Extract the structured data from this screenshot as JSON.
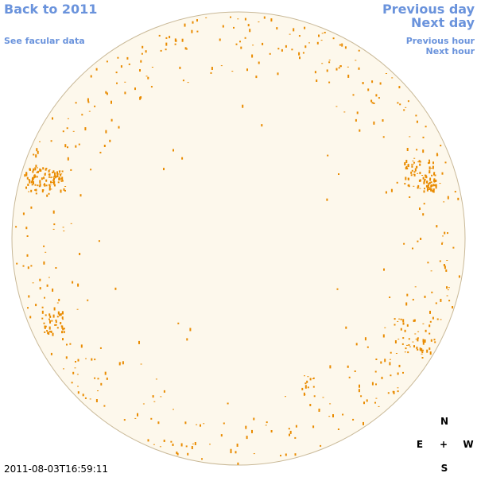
{
  "nav": {
    "back_year": "Back to 2011",
    "facular_data": "See facular data",
    "previous_day": "Previous day",
    "next_day": "Next day",
    "previous_hour": "Previous hour",
    "next_hour": "Next hour"
  },
  "compass": {
    "north": "N",
    "east": "E",
    "center": "+",
    "west": "W",
    "south": "S"
  },
  "timestamp": "2011-08-03T16:59:11"
}
